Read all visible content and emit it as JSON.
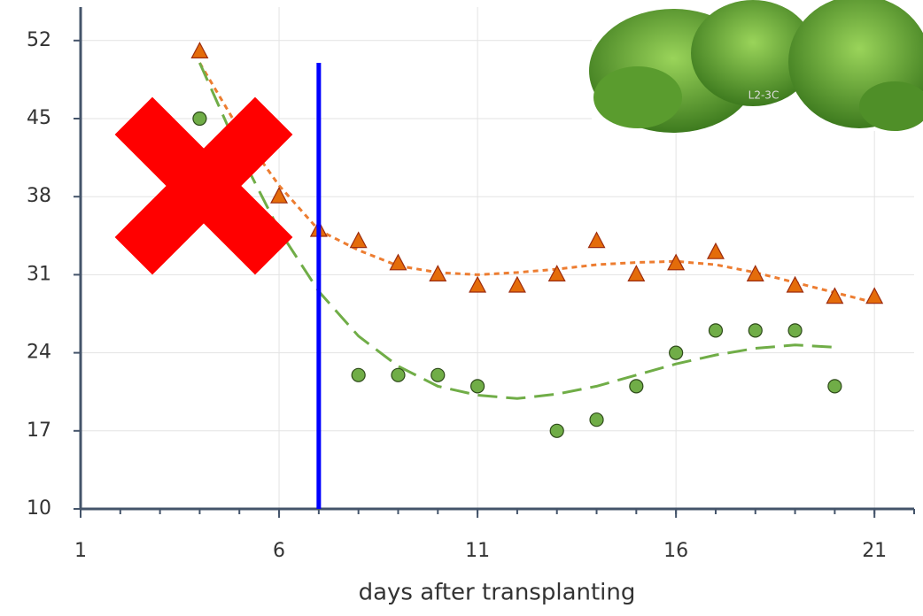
{
  "chart_data": {
    "type": "scatter",
    "xlabel": "days after transplanting",
    "xlim": [
      1,
      22
    ],
    "xticks": [
      1,
      6,
      11,
      16,
      21
    ],
    "xminor_step": 1,
    "ylim": [
      10,
      55
    ],
    "yticks": [
      10,
      17,
      24,
      31,
      38,
      45,
      52
    ],
    "grid": true,
    "series": [
      {
        "marker": "triangle",
        "color": "#e46c0a",
        "x": [
          4,
          6,
          7,
          8,
          9,
          10,
          11,
          12,
          13,
          14,
          15,
          16,
          17,
          18,
          19,
          20,
          21
        ],
        "values": [
          51,
          38,
          35,
          34,
          32,
          31,
          30,
          30,
          31,
          34,
          31,
          32,
          33,
          31,
          30,
          29,
          29
        ],
        "trend_x": [
          4,
          5,
          6,
          7,
          8,
          9,
          10,
          11,
          12,
          13,
          14,
          15,
          16,
          17,
          18,
          19,
          20,
          21
        ],
        "trend_values": [
          50,
          44,
          39,
          35,
          33.2,
          31.8,
          31.2,
          31,
          31.2,
          31.5,
          31.9,
          32.1,
          32.2,
          31.9,
          31.2,
          30.3,
          29.4,
          28.5
        ]
      },
      {
        "marker": "circle",
        "color": "#70ad47",
        "x": [
          4,
          8,
          9,
          10,
          11,
          13,
          14,
          15,
          16,
          17,
          18,
          19,
          20
        ],
        "values": [
          45,
          22,
          22,
          22,
          21,
          17,
          18,
          21,
          24,
          26,
          26,
          26,
          21
        ],
        "trend_x": [
          4,
          5,
          6,
          7,
          8,
          9,
          10,
          11,
          12,
          13,
          14,
          15,
          16,
          17,
          18,
          19,
          20
        ],
        "trend_values": [
          50,
          42,
          35,
          29.5,
          25.5,
          22.8,
          21,
          20.2,
          19.9,
          20.3,
          21,
          22,
          23,
          23.8,
          24.4,
          24.7,
          24.5
        ]
      }
    ],
    "vline": {
      "x": 7,
      "y_top": 50,
      "color": "#0000ff"
    }
  }
}
